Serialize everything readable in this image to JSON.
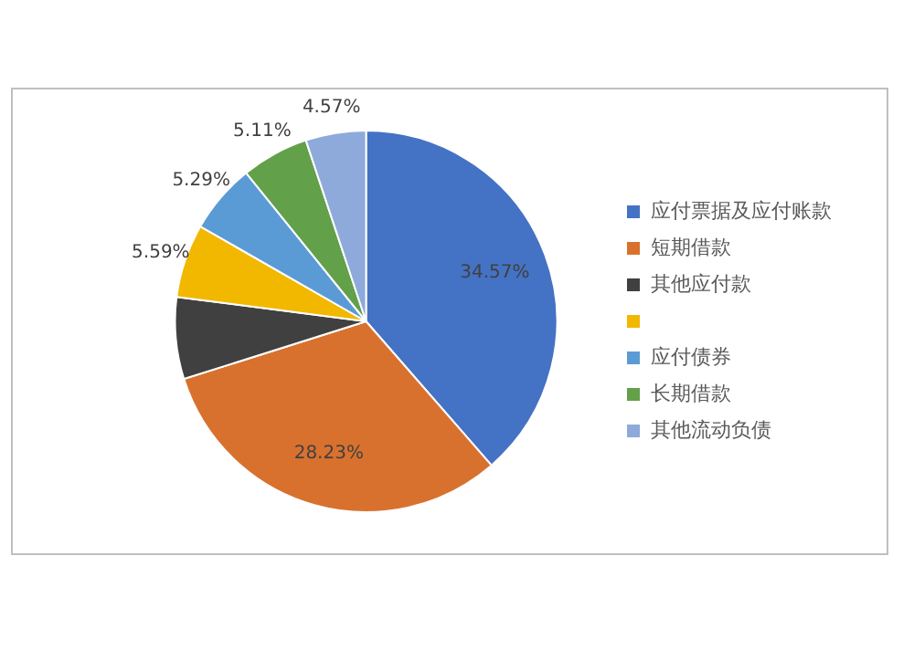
{
  "chart_data": {
    "type": "pie",
    "categories": [
      "应付票据及应付账款",
      "短期借款",
      "其他应付款",
      null,
      "应付债券",
      "长期借款",
      "其他流动负债"
    ],
    "values": [
      34.57,
      28.23,
      6.2,
      5.59,
      5.29,
      5.11,
      4.57
    ],
    "value_labels": [
      "34.57%",
      "28.23%",
      null,
      "5.59%",
      "5.29%",
      "5.11%",
      "4.57%"
    ],
    "colors": [
      "#4472c4",
      "#d9712e",
      "#404040",
      "#f2b800",
      "#5b9bd5",
      "#62a04a",
      "#8eaadb"
    ],
    "legend": "right"
  }
}
